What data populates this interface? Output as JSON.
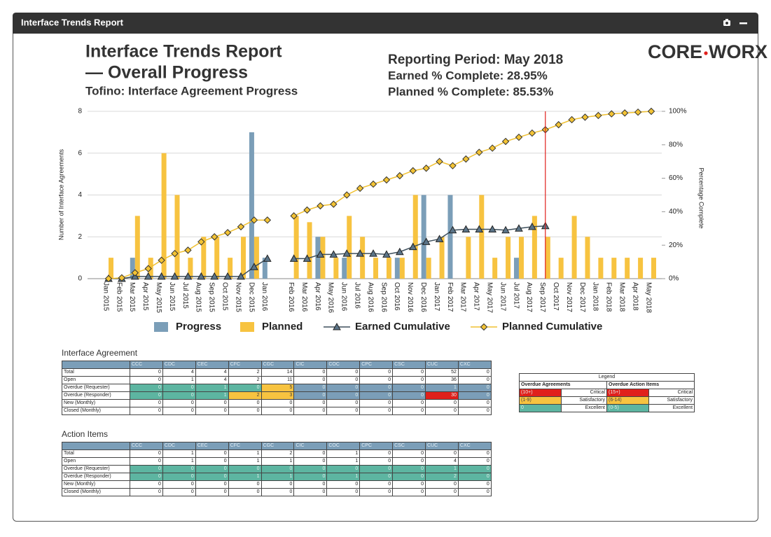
{
  "panel_title": "Interface Trends Report",
  "header": {
    "title_lines": [
      "Interface Trends Report",
      "— Overall Progress"
    ],
    "subtitle": "Tofino: Interface Agreement Progress",
    "reporting_period": "Reporting Period: May 2018",
    "earned": "Earned % Complete: 28.95%",
    "planned": "Planned % Complete: 85.53%",
    "logo": [
      "CORE",
      "WORX"
    ]
  },
  "chart_data": {
    "type": "combo",
    "y_label": "Number of Interface Agreements",
    "y2_label": "Percentage Complete",
    "categories": [
      "Jan 2015",
      "Feb 2015",
      "Mar 2015",
      "Apr 2015",
      "May 2015",
      "Jun 2015",
      "Jul 2015",
      "Aug 2015",
      "Sep 2015",
      "Oct 2015",
      "Nov 2015",
      "Dec 2015",
      "Jan 2016",
      null,
      "Feb 2016",
      "Mar 2016",
      "Apr 2016",
      "May 2016",
      "Jun 2016",
      "Jul 2016",
      "Aug 2016",
      "Sep 2016",
      "Oct 2016",
      "Nov 2016",
      "Dec 2016",
      "Jan 2017",
      "Feb 2017",
      "Mar 2017",
      "Apr 2017",
      "May 2017",
      "Jun 2017",
      "Jul 2017",
      "Aug 2017",
      "Sep 2017",
      "Oct 2017",
      "Nov 2017",
      "Dec 2017",
      "Jan 2018",
      "Feb 2018",
      "Mar 2018",
      "Apr 2018",
      "May 2018"
    ],
    "marker_category": "Sep 2017",
    "marker_color": "#e0201c",
    "series": [
      {
        "name": "Progress",
        "type": "bar",
        "color": "#7b9eb8",
        "values": [
          0,
          0,
          1,
          0,
          0,
          0,
          0,
          0,
          0,
          0,
          0,
          7,
          1,
          null,
          0,
          0,
          2,
          0,
          1,
          0,
          0,
          0,
          1,
          0,
          4,
          0,
          4,
          0,
          0,
          0,
          0,
          1,
          0,
          0,
          0,
          0,
          0,
          0,
          0,
          0,
          0,
          0
        ]
      },
      {
        "name": "Planned",
        "type": "bar",
        "color": "#f7c340",
        "values": [
          1,
          0,
          3,
          1,
          6,
          4,
          1,
          2,
          2,
          1,
          2,
          2,
          0,
          null,
          3,
          2.7,
          2,
          1,
          3,
          2,
          1,
          1,
          1,
          4,
          1,
          2,
          0,
          2,
          4,
          1,
          2,
          2,
          3,
          2,
          1,
          3,
          2,
          1,
          1,
          1,
          1,
          1
        ]
      },
      {
        "name": "Earned Cumulative",
        "type": "line",
        "axis": "y2",
        "marker": "triangle",
        "color": "#3d4f5c",
        "marker_color": "#5b7488",
        "values": [
          0,
          0,
          1.3,
          1.3,
          1.3,
          1.3,
          1.3,
          1.3,
          1.3,
          1.3,
          1.3,
          7,
          12,
          null,
          12,
          12,
          14.5,
          14.5,
          15,
          15,
          15,
          14.5,
          16,
          19,
          22,
          23.7,
          29,
          29.5,
          29.5,
          29.5,
          29,
          30,
          31,
          31.5,
          null,
          null,
          null,
          null,
          null,
          null,
          null,
          null
        ]
      },
      {
        "name": "Planned Cumulative",
        "type": "line",
        "axis": "y2",
        "marker": "diamond",
        "color": "#f0c030",
        "marker_color": "#f3c334",
        "values": [
          0,
          0.5,
          3.5,
          6,
          11,
          15,
          17,
          22,
          25,
          27.5,
          31,
          35,
          35,
          null,
          37.5,
          41,
          43.5,
          44.5,
          50,
          54,
          56.5,
          59,
          61.5,
          64.5,
          66,
          70,
          67.5,
          71.5,
          75.5,
          78,
          82,
          84.5,
          87,
          89,
          92,
          95,
          96.5,
          97.5,
          98.5,
          99,
          99.5,
          100
        ]
      }
    ],
    "ylim": [
      0,
      8
    ],
    "yticks": [
      0,
      2,
      4,
      6,
      8
    ],
    "y2lim": [
      0,
      100
    ],
    "y2ticks": [
      {
        "value": 0,
        "label": "0%"
      },
      {
        "value": 20,
        "label": "20%"
      },
      {
        "value": 40,
        "label": "40%"
      },
      {
        "value": 60,
        "label": "60%"
      },
      {
        "value": 80,
        "label": "80%"
      },
      {
        "value": 100,
        "label": "100%"
      }
    ],
    "grid": true
  },
  "tables": [
    {
      "title": "Interface Agreement",
      "columns": [
        "CCC",
        "CDC",
        "CEC",
        "CFC",
        "CGC",
        "CIC",
        "COC",
        "CPC",
        "CSC",
        "CUC",
        "CXC"
      ],
      "rows": [
        {
          "label": "Total",
          "values": [
            0,
            4,
            4,
            2,
            14,
            0,
            0,
            0,
            0,
            52,
            0
          ]
        },
        {
          "label": "Open",
          "values": [
            0,
            1,
            4,
            2,
            11,
            0,
            0,
            0,
            0,
            36,
            0
          ]
        },
        {
          "label": "Overdue (Requester)",
          "values": [
            0,
            0,
            1,
            0,
            5,
            0,
            0,
            0,
            0,
            1,
            0
          ],
          "colors": [
            "#5db5a1",
            "#5db5a1",
            "#5db5a1",
            "#5db5a1",
            "#f7c340",
            "#7b9eb8",
            "#7b9eb8",
            "#7b9eb8",
            "#7b9eb8",
            "#7b9eb8",
            "#7b9eb8"
          ]
        },
        {
          "label": "Overdue (Responder)",
          "values": [
            0,
            0,
            1,
            2,
            3,
            0,
            0,
            0,
            0,
            30,
            0
          ],
          "colors": [
            "#5db5a1",
            "#5db5a1",
            "#5db5a1",
            "#f7c340",
            "#f7c340",
            "#7b9eb8",
            "#7b9eb8",
            "#7b9eb8",
            "#7b9eb8",
            "#e0201c",
            "#7b9eb8"
          ]
        },
        {
          "label": "New (Monthly)",
          "values": [
            0,
            0,
            0,
            0,
            0,
            0,
            0,
            0,
            0,
            0,
            0
          ]
        },
        {
          "label": "Closed (Monthly)",
          "values": [
            0,
            0,
            0,
            0,
            0,
            0,
            0,
            0,
            0,
            0,
            0
          ]
        }
      ]
    },
    {
      "title": "Action Items",
      "columns": [
        "CCC",
        "CDC",
        "CEC",
        "CFC",
        "CGC",
        "CIC",
        "COC",
        "CPC",
        "CSC",
        "CUC",
        "CXC"
      ],
      "rows": [
        {
          "label": "Total",
          "values": [
            0,
            1,
            0,
            1,
            2,
            0,
            1,
            0,
            0,
            0,
            0
          ]
        },
        {
          "label": "Open",
          "values": [
            0,
            1,
            0,
            1,
            1,
            0,
            1,
            0,
            0,
            4,
            0
          ]
        },
        {
          "label": "Overdue (Requester)",
          "values": [
            0,
            0,
            0,
            0,
            0,
            0,
            0,
            0,
            0,
            1,
            0
          ],
          "colors": [
            "#5db5a1",
            "#5db5a1",
            "#5db5a1",
            "#5db5a1",
            "#5db5a1",
            "#5db5a1",
            "#5db5a1",
            "#5db5a1",
            "#5db5a1",
            "#5db5a1",
            "#5db5a1"
          ]
        },
        {
          "label": "Overdue (Responder)",
          "values": [
            0,
            0,
            0,
            1,
            1,
            0,
            1,
            0,
            0,
            2,
            0
          ],
          "colors": [
            "#5db5a1",
            "#5db5a1",
            "#5db5a1",
            "#5db5a1",
            "#5db5a1",
            "#5db5a1",
            "#5db5a1",
            "#5db5a1",
            "#5db5a1",
            "#5db5a1",
            "#5db5a1"
          ]
        },
        {
          "label": "New (Monthly)",
          "values": [
            0,
            0,
            0,
            0,
            0,
            0,
            0,
            0,
            0,
            0,
            0
          ]
        },
        {
          "label": "Closed (Monthly)",
          "values": [
            0,
            0,
            0,
            0,
            0,
            0,
            0,
            0,
            0,
            0,
            0
          ]
        }
      ]
    }
  ],
  "status_legend": {
    "title": "Legend",
    "headers": [
      "Overdue Agreements",
      "Overdue Action Items"
    ],
    "rows": [
      {
        "color": "#e0201c",
        "cells": [
          "(10+)",
          "Critical",
          "(15+)",
          "Critical"
        ]
      },
      {
        "color": "#f7c340",
        "cells": [
          "(1-9)",
          "Satisfactory",
          "(6-14)",
          "Satisfactory"
        ]
      },
      {
        "color": "#5db5a1",
        "cells": [
          "0",
          "Excellent",
          "(0-5)",
          "Excellent"
        ]
      }
    ]
  }
}
